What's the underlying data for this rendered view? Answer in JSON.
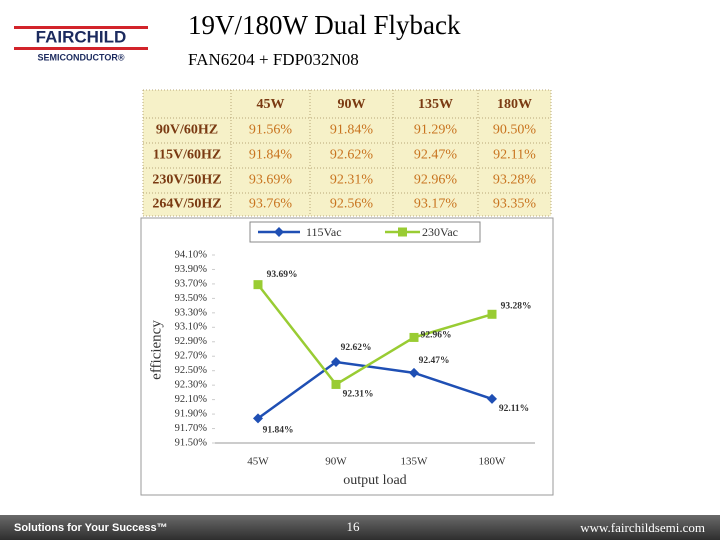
{
  "header": {
    "logo": "FAIRCHILD",
    "logo_sub": "SEMICONDUCTOR®",
    "title": "19V/180W Dual Flyback",
    "subtitle": "FAN6204 + FDP032N08"
  },
  "table": {
    "columns": [
      "45W",
      "90W",
      "135W",
      "180W"
    ],
    "rows": [
      {
        "label": "90V/60HZ",
        "cells": [
          "91.56%",
          "91.84%",
          "91.29%",
          "90.50%"
        ]
      },
      {
        "label": "115V/60HZ",
        "cells": [
          "91.84%",
          "92.62%",
          "92.47%",
          "92.11%"
        ]
      },
      {
        "label": "230V/50HZ",
        "cells": [
          "93.69%",
          "92.31%",
          "92.96%",
          "93.28%"
        ]
      },
      {
        "label": "264V/50HZ",
        "cells": [
          "93.76%",
          "92.56%",
          "93.17%",
          "93.35%"
        ]
      }
    ]
  },
  "chart_data": {
    "type": "line",
    "x_label": "output load",
    "y_label": "efficiency",
    "categories": [
      "45W",
      "90W",
      "135W",
      "180W"
    ],
    "series": [
      {
        "name": "115Vac",
        "color": "#1f4fb4",
        "marker": "diamond",
        "values": [
          91.84,
          92.62,
          92.47,
          92.11
        ],
        "value_labels": [
          "91.84%",
          "92.62%",
          "92.47%",
          "92.11%"
        ]
      },
      {
        "name": "230Vac",
        "color": "#99cc33",
        "marker": "square",
        "values": [
          93.69,
          92.31,
          92.96,
          93.28
        ],
        "value_labels": [
          "93.69%",
          "92.31%",
          "92.96%",
          "93.28%"
        ]
      }
    ],
    "ylim": [
      91.5,
      94.1
    ],
    "yticks": [
      {
        "value": 91.5,
        "label": "91.50%"
      },
      {
        "value": 91.7,
        "label": "91.70%"
      },
      {
        "value": 91.9,
        "label": "91.90%"
      },
      {
        "value": 92.1,
        "label": "92.10%"
      },
      {
        "value": 92.3,
        "label": "92.30%"
      },
      {
        "value": 92.5,
        "label": "92.50%"
      },
      {
        "value": 92.7,
        "label": "92.70%"
      },
      {
        "value": 92.9,
        "label": "92.90%"
      },
      {
        "value": 93.1,
        "label": "93.10%"
      },
      {
        "value": 93.3,
        "label": "93.30%"
      },
      {
        "value": 93.5,
        "label": "93.50%"
      },
      {
        "value": 93.7,
        "label": "93.70%"
      },
      {
        "value": 93.9,
        "label": "93.90%"
      },
      {
        "value": 94.1,
        "label": "94.10%"
      }
    ],
    "grid": false
  },
  "footer": {
    "slogan": "Solutions for Your Success™",
    "page": "16",
    "url": "www.fairchildsemi.com"
  }
}
